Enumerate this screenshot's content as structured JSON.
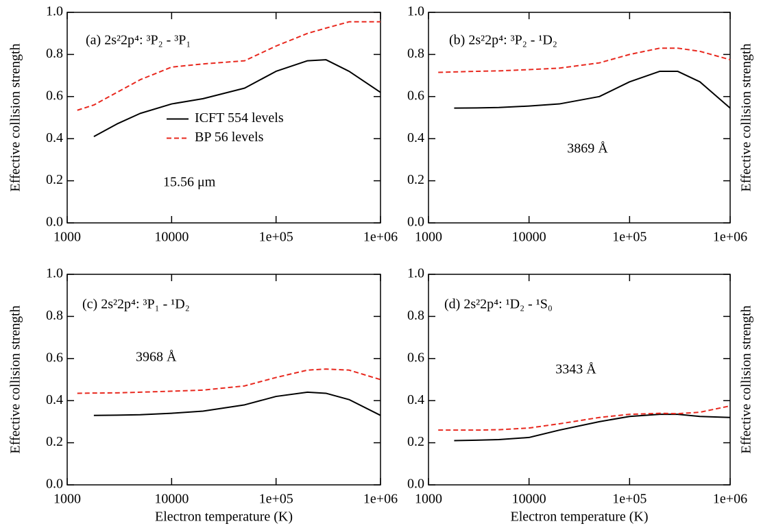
{
  "chart_data": [
    {
      "type": "line",
      "title": "(a)  2s²2p⁴: ³P₂ - ³P₁",
      "annotation": "15.56 μm",
      "ylabel": "Effective collision strength",
      "log_x": true,
      "legend": "center left",
      "x": [
        1250,
        1800,
        3000,
        5000,
        10000,
        20000,
        50000,
        100000,
        200000,
        300000,
        500000,
        1000000
      ],
      "series": [
        {
          "name": "ICFT 554 levels",
          "color": "#000000",
          "dashed": false,
          "values": [
            null,
            0.41,
            0.47,
            0.52,
            0.565,
            0.59,
            0.64,
            0.72,
            0.77,
            0.775,
            0.72,
            0.62
          ]
        },
        {
          "name": "BP 56 levels",
          "color": "#e8281e",
          "dashed": true,
          "values": [
            0.535,
            0.56,
            0.62,
            0.68,
            0.74,
            0.755,
            0.77,
            0.84,
            0.9,
            0.925,
            0.955,
            0.955
          ]
        }
      ],
      "xlim": [
        1000,
        1000000
      ],
      "xticks": [
        1000,
        10000,
        {
          "value": 100000,
          "label": "1e+05"
        },
        {
          "value": 1000000,
          "label": "1e+06"
        }
      ],
      "ylim": [
        0,
        1
      ],
      "yticks": [
        {
          "value": 0,
          "label": "0.0"
        },
        0.2,
        0.4,
        0.6,
        0.8,
        {
          "value": 1,
          "label": "1.0"
        }
      ]
    },
    {
      "type": "line",
      "title": "(b)  2s²2p⁴: ³P₂ - ¹D₂",
      "annotation": "3869 Å",
      "ylabel": "Effective collision strength",
      "log_x": true,
      "x": [
        1250,
        1800,
        3000,
        5000,
        10000,
        20000,
        50000,
        100000,
        200000,
        300000,
        500000,
        1000000
      ],
      "series": [
        {
          "color": "#000000",
          "dashed": false,
          "values": [
            null,
            0.545,
            0.546,
            0.548,
            0.555,
            0.565,
            0.6,
            0.67,
            0.72,
            0.72,
            0.67,
            0.545
          ]
        },
        {
          "color": "#e8281e",
          "dashed": true,
          "values": [
            0.715,
            0.717,
            0.72,
            0.722,
            0.728,
            0.735,
            0.76,
            0.8,
            0.83,
            0.83,
            0.815,
            0.775
          ]
        }
      ],
      "xlim": [
        1000,
        1000000
      ],
      "xticks": [
        1000,
        10000,
        {
          "value": 100000,
          "label": "1e+05"
        },
        {
          "value": 1000000,
          "label": "1e+06"
        }
      ],
      "ylim": [
        0,
        1
      ],
      "yticks": [
        {
          "value": 0,
          "label": "0.0"
        },
        0.2,
        0.4,
        0.6,
        0.8,
        {
          "value": 1,
          "label": "1.0"
        }
      ]
    },
    {
      "type": "line",
      "title": "(c)  2s²2p⁴: ³P₁ - ¹D₂",
      "annotation": "3968 Å",
      "ylabel": "Effective collision strength",
      "xlabel": "Electron temperature (K)",
      "log_x": true,
      "x": [
        1250,
        1800,
        3000,
        5000,
        10000,
        20000,
        50000,
        100000,
        200000,
        300000,
        500000,
        1000000
      ],
      "series": [
        {
          "color": "#000000",
          "dashed": false,
          "values": [
            null,
            0.33,
            0.331,
            0.333,
            0.34,
            0.35,
            0.38,
            0.42,
            0.44,
            0.435,
            0.405,
            0.33
          ]
        },
        {
          "color": "#e8281e",
          "dashed": true,
          "values": [
            0.435,
            0.436,
            0.437,
            0.44,
            0.445,
            0.45,
            0.47,
            0.51,
            0.545,
            0.55,
            0.545,
            0.5
          ]
        }
      ],
      "xlim": [
        1000,
        1000000
      ],
      "xticks": [
        1000,
        10000,
        {
          "value": 100000,
          "label": "1e+05"
        },
        {
          "value": 1000000,
          "label": "1e+06"
        }
      ],
      "ylim": [
        0,
        1
      ],
      "yticks": [
        {
          "value": 0,
          "label": "0.0"
        },
        0.2,
        0.4,
        0.6,
        0.8,
        {
          "value": 1,
          "label": "1.0"
        }
      ]
    },
    {
      "type": "line",
      "title": "(d)  2s²2p⁴: ¹D₂ - ¹S₀",
      "annotation": "3343 Å",
      "ylabel": "Effective collision strength",
      "xlabel": "Electron temperature (K)",
      "log_x": true,
      "x": [
        1250,
        1800,
        3000,
        5000,
        10000,
        20000,
        50000,
        100000,
        200000,
        300000,
        500000,
        1000000
      ],
      "series": [
        {
          "color": "#000000",
          "dashed": false,
          "values": [
            null,
            0.21,
            0.212,
            0.215,
            0.225,
            0.26,
            0.3,
            0.325,
            0.335,
            0.335,
            0.325,
            0.32
          ]
        },
        {
          "color": "#e8281e",
          "dashed": true,
          "values": [
            0.26,
            0.26,
            0.26,
            0.262,
            0.27,
            0.29,
            0.32,
            0.335,
            0.34,
            0.338,
            0.345,
            0.375
          ]
        }
      ],
      "xlim": [
        1000,
        1000000
      ],
      "xticks": [
        1000,
        10000,
        {
          "value": 100000,
          "label": "1e+05"
        },
        {
          "value": 1000000,
          "label": "1e+06"
        }
      ],
      "ylim": [
        0,
        1
      ],
      "yticks": [
        {
          "value": 0,
          "label": "0.0"
        },
        0.2,
        0.4,
        0.6,
        0.8,
        {
          "value": 1,
          "label": "1.0"
        }
      ]
    }
  ]
}
